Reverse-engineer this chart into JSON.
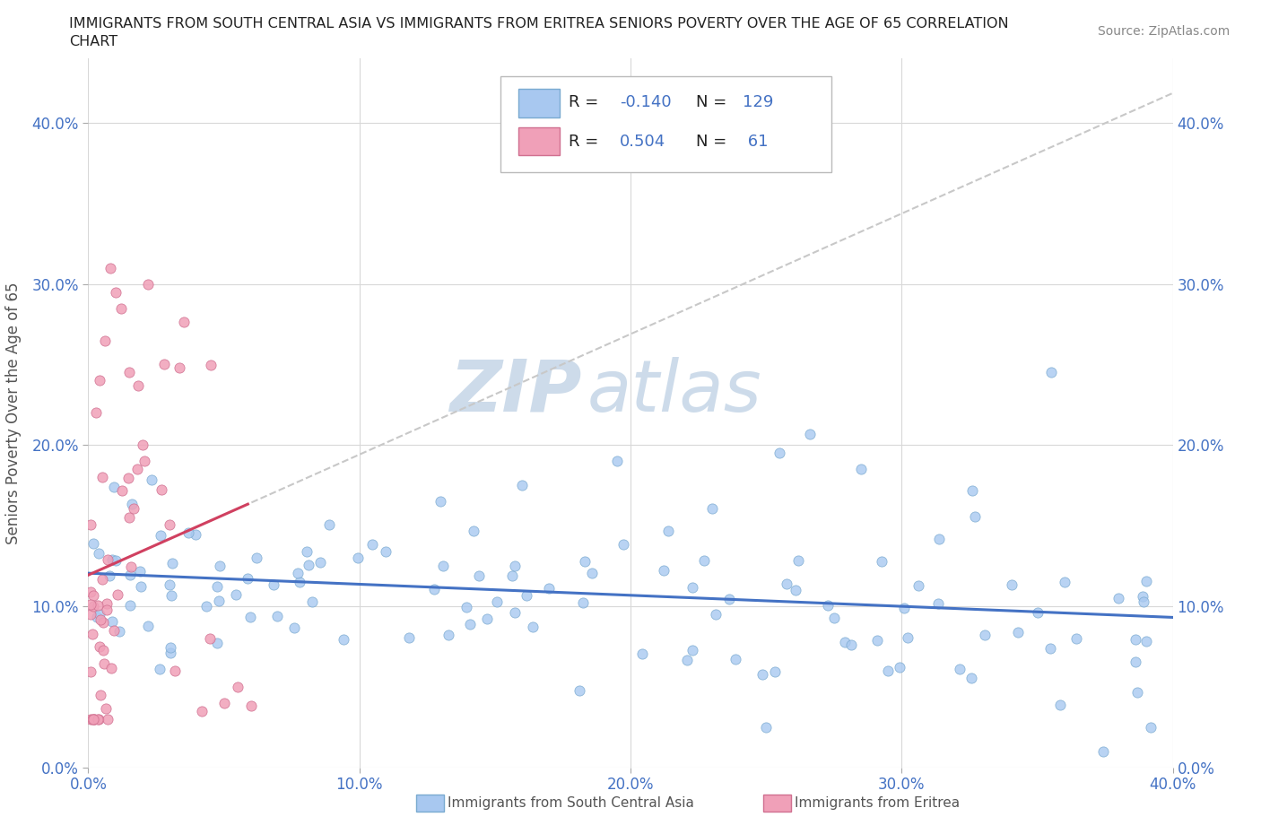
{
  "title_line1": "IMMIGRANTS FROM SOUTH CENTRAL ASIA VS IMMIGRANTS FROM ERITREA SENIORS POVERTY OVER THE AGE OF 65 CORRELATION",
  "title_line2": "CHART",
  "source_text": "Source: ZipAtlas.com",
  "ylabel": "Seniors Poverty Over the Age of 65",
  "xlim": [
    0.0,
    0.4
  ],
  "ylim": [
    0.0,
    0.44
  ],
  "yticks": [
    0.0,
    0.1,
    0.2,
    0.3,
    0.4
  ],
  "xticks": [
    0.0,
    0.1,
    0.2,
    0.3,
    0.4
  ],
  "ytick_labels": [
    "0.0%",
    "10.0%",
    "20.0%",
    "30.0%",
    "40.0%"
  ],
  "xtick_labels": [
    "0.0%",
    "10.0%",
    "20.0%",
    "30.0%",
    "40.0%"
  ],
  "series1_color": "#a8c8f0",
  "series1_edge": "#7aaad0",
  "series2_color": "#f0a0b8",
  "series2_edge": "#d07090",
  "series1_label": "Immigrants from South Central Asia",
  "series2_label": "Immigrants from Eritrea",
  "series1_R": -0.14,
  "series1_N": 129,
  "series2_R": 0.504,
  "series2_N": 61,
  "legend_R_color": "#4472c4",
  "reg_line1_color": "#4472c4",
  "reg_line2_color": "#d04060",
  "reg_line2_dash_color": "#c8c8c8",
  "watermark_zip_color": "#c8d8e8",
  "watermark_atlas_color": "#c8d8e8"
}
